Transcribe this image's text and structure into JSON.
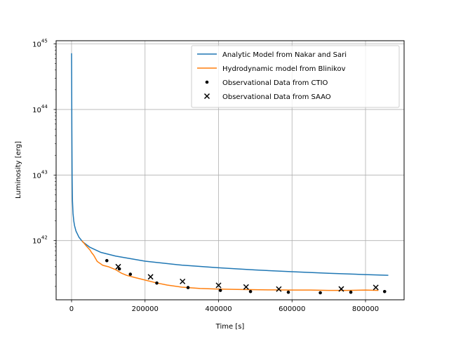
{
  "chart_data": {
    "type": "line",
    "title": "",
    "xlabel": "Time [s]",
    "ylabel": "Luminosity [erg]",
    "yscale": "log",
    "xlim": [
      -42000,
      905000
    ],
    "ylim": [
      1.25e+41,
      1.12e+45
    ],
    "grid": true,
    "legend_position": "top-right",
    "x_ticks": [
      {
        "value": 0,
        "label": "0"
      },
      {
        "value": 200000,
        "label": "200000"
      },
      {
        "value": 400000,
        "label": "400000"
      },
      {
        "value": 600000,
        "label": "600000"
      },
      {
        "value": 800000,
        "label": "800000"
      }
    ],
    "y_ticks": [
      {
        "value": 1e+42,
        "base": "10",
        "exp": "42"
      },
      {
        "value": 1e+43,
        "base": "10",
        "exp": "43"
      },
      {
        "value": 1e+44,
        "base": "10",
        "exp": "44"
      },
      {
        "value": 1e+45,
        "base": "10",
        "exp": "45"
      }
    ],
    "series": [
      {
        "name": "Analytic Model from Nakar and Sari",
        "kind": "line",
        "color": "#1f77b4",
        "x": [
          0,
          300,
          800,
          1500,
          2500,
          4000,
          6000,
          8000,
          12000,
          20000,
          30000,
          50000,
          80000,
          120000,
          200000,
          300000,
          400000,
          500000,
          600000,
          700000,
          800000,
          862000
        ],
        "y": [
          7.2e+44,
          3e+44,
          5e+43,
          1e+43,
          4e+42,
          2.6e+42,
          2e+42,
          1.7e+42,
          1.4e+42,
          1.13e+42,
          9.6e+41,
          7.9e+41,
          6.6e+41,
          5.8e+41,
          4.85e+41,
          4.22e+41,
          3.85e+41,
          3.56e+41,
          3.35e+41,
          3.17e+41,
          3.03e+41,
          2.95e+41
        ]
      },
      {
        "name": "Hydrodynamic model from Blinikov",
        "kind": "line",
        "color": "#ff7f0e",
        "x": [
          28000,
          40000,
          50000,
          55000,
          60000,
          70000,
          85000,
          100000,
          120000,
          135000,
          150000,
          170000,
          200000,
          230000,
          260000,
          300000,
          350000,
          400000,
          450000,
          500000,
          550000,
          600000,
          650000,
          700000,
          750000,
          800000,
          835000
        ],
        "y": [
          1e+42,
          8.3e+41,
          7.2e+41,
          6.5e+41,
          6e+41,
          4.8e+41,
          4.2e+41,
          4e+41,
          3.6e+41,
          3.2e+41,
          2.95e+41,
          2.75e+41,
          2.5e+41,
          2.27e+41,
          2.1e+41,
          1.95e+41,
          1.86e+41,
          1.82e+41,
          1.8e+41,
          1.78e+41,
          1.77e+41,
          1.76e+41,
          1.76e+41,
          1.74e+41,
          1.74e+41,
          1.76e+41,
          1.74e+41
        ]
      },
      {
        "name": "Observational Data from CTIO",
        "kind": "scatter",
        "marker": "dot",
        "color": "#000000",
        "x": [
          96000,
          130000,
          160000,
          232000,
          317000,
          405000,
          487000,
          590000,
          677000,
          760000,
          852000
        ],
        "y": [
          4.95e+41,
          3.7e+41,
          3.07e+41,
          2.25e+41,
          1.92e+41,
          1.74e+41,
          1.67e+41,
          1.63e+41,
          1.6e+41,
          1.63e+41,
          1.67e+41
        ]
      },
      {
        "name": "Observational Data from SAAO",
        "kind": "scatter",
        "marker": "x",
        "color": "#000000",
        "x": [
          127000,
          215000,
          302000,
          400000,
          475000,
          564000,
          734000,
          828000
        ],
        "y": [
          4e+41,
          2.8e+41,
          2.38e+41,
          2.08e+41,
          1.96e+41,
          1.82e+41,
          1.83e+41,
          1.93e+41
        ]
      }
    ]
  }
}
